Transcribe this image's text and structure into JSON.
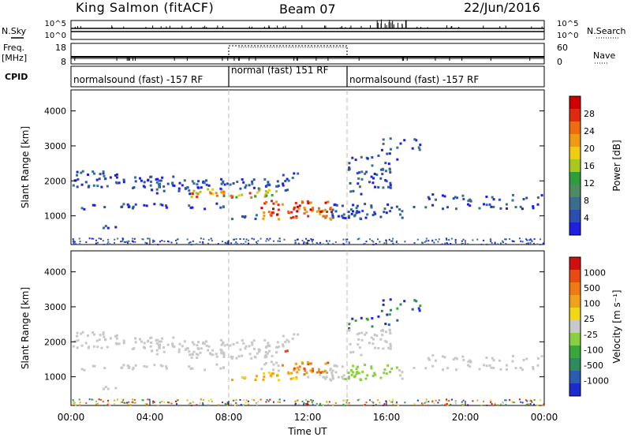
{
  "header": {
    "station": "King Salmon (fitACF)",
    "beam": "Beam 07",
    "date": "22/Jun/2016"
  },
  "side_labels": {
    "nsky": "N.Sky",
    "freq_line1": "Freq.",
    "freq_line2": "[MHz]",
    "cpid": "CPID",
    "nsearch": "N.Search",
    "nave": "Nave"
  },
  "chart_data": [
    {
      "type": "line",
      "name": "noise-panel",
      "yticks_left": [
        "10^5",
        "10^0"
      ],
      "yticks_right": [
        "10^5",
        "10^0"
      ]
    },
    {
      "type": "line",
      "name": "freq-nave-panel",
      "yticks_left": [
        "18",
        "8"
      ],
      "yticks_right": [
        "60",
        "0"
      ]
    },
    {
      "type": "table",
      "name": "cpid-panel",
      "segments": [
        {
          "label": "normalsound (fast) -157 RF",
          "start_hour": 0,
          "end_hour": 8
        },
        {
          "label": "normal (fast) 151 RF",
          "start_hour": 8,
          "end_hour": 14
        },
        {
          "label": "normalsound (fast) -157 RF",
          "start_hour": 14,
          "end_hour": 24
        }
      ]
    },
    {
      "type": "heatmap",
      "name": "power",
      "ylabel": "Slant Range [km]",
      "yticks": [
        1000,
        2000,
        3000,
        4000
      ],
      "ylim": [
        180,
        4600
      ],
      "colorbar_label": "Power [dB]",
      "colorbar_ticks": [
        "4",
        "8",
        "12",
        "16",
        "20",
        "24",
        "28"
      ],
      "colorbar_colors": [
        "#1f1fe0",
        "#2a4fb0",
        "#3a6d8e",
        "#4e8a62",
        "#2e9e3a",
        "#a8c81e",
        "#f0cc10",
        "#f09a14",
        "#f06a10",
        "#e02a10",
        "#d00000"
      ]
    },
    {
      "type": "heatmap",
      "name": "velocity",
      "ylabel": "Slant Range [km]",
      "yticks": [
        1000,
        2000,
        3000,
        4000
      ],
      "ylim": [
        180,
        4600
      ],
      "xlabel": "Time UT",
      "xticks": [
        "00:00",
        "04:00",
        "08:00",
        "12:00",
        "16:00",
        "20:00",
        "00:00"
      ],
      "xlim": [
        0,
        24
      ],
      "colorbar_label": "Velocity [m s⁻¹]",
      "colorbar_ticks": [
        "1000",
        "500",
        "100",
        "25",
        "-25",
        "-100",
        "-500",
        "-1000"
      ],
      "colorbar_colors": [
        "#1c2ad0",
        "#2c5cb0",
        "#2f8a5c",
        "#38a83a",
        "#88d040",
        "#c8c8c8",
        "#f0d814",
        "#f0a21a",
        "#f07a12",
        "#e84a10",
        "#d01010"
      ]
    }
  ]
}
